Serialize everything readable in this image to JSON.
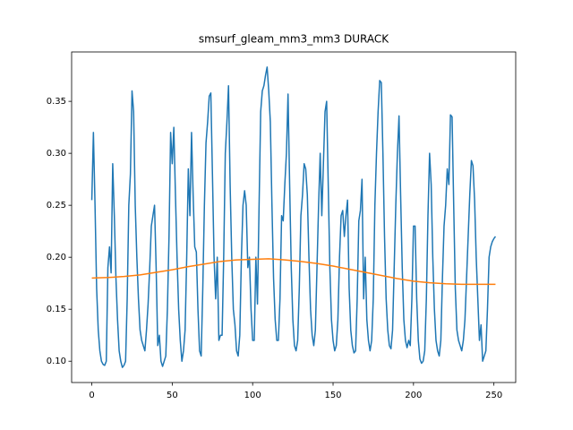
{
  "chart_data": {
    "type": "line",
    "title": "smsurf_gleam_mm3_mm3 DURACK",
    "xlim": [
      -12.55,
      263.55
    ],
    "xticks": [
      0,
      50,
      100,
      150,
      200,
      250
    ],
    "ylim": [
      0.0795,
      0.3975
    ],
    "yticks": [
      {
        "value": 0.1,
        "label": "0.10"
      },
      0.15,
      {
        "value": 0.2,
        "label": "0.20"
      },
      0.25,
      {
        "value": 0.3,
        "label": "0.30"
      },
      0.35
    ],
    "series": [
      {
        "color": "#1f77b4",
        "x": [
          0,
          1,
          2,
          3,
          4,
          5,
          6,
          7,
          8,
          9,
          10,
          11,
          12,
          13,
          14,
          15,
          16,
          17,
          18,
          19,
          20,
          21,
          22,
          23,
          24,
          25,
          26,
          27,
          28,
          29,
          30,
          31,
          32,
          33,
          34,
          35,
          36,
          37,
          38,
          39,
          40,
          41,
          42,
          43,
          44,
          45,
          46,
          47,
          48,
          49,
          50,
          51,
          52,
          53,
          54,
          55,
          56,
          57,
          58,
          59,
          60,
          61,
          62,
          63,
          64,
          65,
          66,
          67,
          68,
          69,
          70,
          71,
          72,
          73,
          74,
          75,
          76,
          77,
          78,
          79,
          80,
          81,
          82,
          83,
          84,
          85,
          86,
          87,
          88,
          89,
          90,
          91,
          92,
          93,
          94,
          95,
          96,
          97,
          98,
          99,
          100,
          101,
          102,
          103,
          104,
          105,
          106,
          107,
          108,
          109,
          110,
          111,
          112,
          113,
          114,
          115,
          116,
          117,
          118,
          119,
          120,
          121,
          122,
          123,
          124,
          125,
          126,
          127,
          128,
          129,
          130,
          131,
          132,
          133,
          134,
          135,
          136,
          137,
          138,
          139,
          140,
          141,
          142,
          143,
          144,
          145,
          146,
          147,
          148,
          149,
          150,
          151,
          152,
          153,
          154,
          155,
          156,
          157,
          158,
          159,
          160,
          161,
          162,
          163,
          164,
          165,
          166,
          167,
          168,
          169,
          170,
          171,
          172,
          173,
          174,
          175,
          176,
          177,
          178,
          179,
          180,
          181,
          182,
          183,
          184,
          185,
          186,
          187,
          188,
          189,
          190,
          191,
          192,
          193,
          194,
          195,
          196,
          197,
          198,
          199,
          200,
          201,
          202,
          203,
          204,
          205,
          206,
          207,
          208,
          209,
          210,
          211,
          212,
          213,
          214,
          215,
          216,
          217,
          218,
          219,
          220,
          221,
          222,
          223,
          224,
          225,
          226,
          227,
          228,
          229,
          230,
          231,
          232,
          233,
          234,
          235,
          236,
          237,
          238,
          239,
          240,
          241,
          242,
          243,
          244,
          245,
          246,
          247,
          248,
          249,
          250,
          251
        ],
        "values": [
          0.255,
          0.32,
          0.25,
          0.17,
          0.13,
          0.11,
          0.1,
          0.097,
          0.096,
          0.1,
          0.19,
          0.21,
          0.185,
          0.29,
          0.24,
          0.18,
          0.14,
          0.11,
          0.1,
          0.094,
          0.096,
          0.1,
          0.16,
          0.25,
          0.28,
          0.36,
          0.34,
          0.25,
          0.2,
          0.16,
          0.13,
          0.12,
          0.115,
          0.11,
          0.13,
          0.155,
          0.19,
          0.23,
          0.24,
          0.25,
          0.19,
          0.115,
          0.125,
          0.1,
          0.095,
          0.1,
          0.105,
          0.15,
          0.22,
          0.32,
          0.29,
          0.325,
          0.26,
          0.2,
          0.15,
          0.12,
          0.1,
          0.11,
          0.13,
          0.2,
          0.285,
          0.24,
          0.32,
          0.26,
          0.21,
          0.205,
          0.15,
          0.11,
          0.105,
          0.17,
          0.25,
          0.31,
          0.33,
          0.355,
          0.358,
          0.28,
          0.2,
          0.16,
          0.2,
          0.12,
          0.125,
          0.125,
          0.2,
          0.3,
          0.33,
          0.365,
          0.27,
          0.2,
          0.15,
          0.135,
          0.11,
          0.105,
          0.125,
          0.2,
          0.25,
          0.264,
          0.25,
          0.19,
          0.2,
          0.15,
          0.12,
          0.12,
          0.2,
          0.155,
          0.25,
          0.34,
          0.36,
          0.365,
          0.375,
          0.383,
          0.36,
          0.33,
          0.25,
          0.18,
          0.14,
          0.12,
          0.12,
          0.16,
          0.24,
          0.235,
          0.27,
          0.3,
          0.357,
          0.27,
          0.19,
          0.14,
          0.115,
          0.11,
          0.12,
          0.17,
          0.24,
          0.26,
          0.29,
          0.285,
          0.26,
          0.2,
          0.15,
          0.125,
          0.115,
          0.13,
          0.19,
          0.25,
          0.3,
          0.24,
          0.29,
          0.34,
          0.35,
          0.27,
          0.19,
          0.14,
          0.12,
          0.11,
          0.115,
          0.14,
          0.2,
          0.24,
          0.245,
          0.22,
          0.24,
          0.255,
          0.17,
          0.13,
          0.115,
          0.108,
          0.11,
          0.16,
          0.235,
          0.245,
          0.275,
          0.16,
          0.2,
          0.14,
          0.12,
          0.11,
          0.12,
          0.16,
          0.25,
          0.3,
          0.34,
          0.37,
          0.368,
          0.3,
          0.22,
          0.16,
          0.13,
          0.115,
          0.112,
          0.13,
          0.19,
          0.25,
          0.3,
          0.336,
          0.26,
          0.19,
          0.14,
          0.12,
          0.113,
          0.12,
          0.115,
          0.16,
          0.23,
          0.23,
          0.16,
          0.12,
          0.102,
          0.098,
          0.1,
          0.11,
          0.16,
          0.24,
          0.3,
          0.27,
          0.2,
          0.15,
          0.12,
          0.11,
          0.105,
          0.12,
          0.18,
          0.23,
          0.25,
          0.285,
          0.27,
          0.337,
          0.335,
          0.25,
          0.17,
          0.13,
          0.12,
          0.115,
          0.11,
          0.12,
          0.14,
          0.18,
          0.22,
          0.26,
          0.293,
          0.288,
          0.255,
          0.2,
          0.16,
          0.12,
          0.135,
          0.1,
          0.105,
          0.11,
          0.15,
          0.2,
          0.21,
          0.215,
          0.218,
          0.22
        ]
      },
      {
        "color": "#ff7f0e",
        "x": [
          0,
          10,
          20,
          30,
          40,
          50,
          60,
          70,
          80,
          90,
          100,
          110,
          120,
          130,
          140,
          150,
          160,
          170,
          180,
          190,
          200,
          210,
          220,
          230,
          240,
          251
        ],
        "values": [
          0.18,
          0.1805,
          0.1815,
          0.183,
          0.1855,
          0.188,
          0.191,
          0.1935,
          0.196,
          0.1975,
          0.198,
          0.1985,
          0.1975,
          0.196,
          0.194,
          0.1915,
          0.1885,
          0.1855,
          0.1825,
          0.1795,
          0.177,
          0.1755,
          0.1745,
          0.174,
          0.174,
          0.174
        ]
      }
    ]
  }
}
